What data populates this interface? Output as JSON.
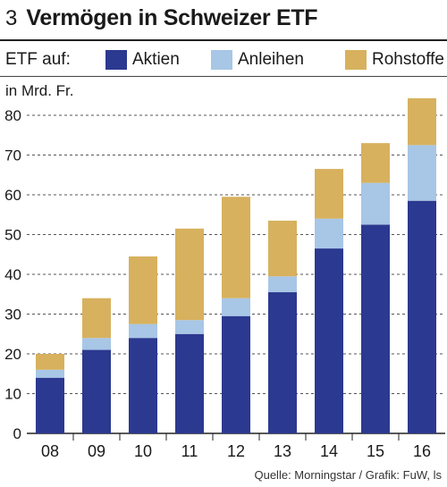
{
  "header": {
    "number": "3",
    "title": "Vermögen in Schweizer ETF"
  },
  "legend": {
    "label": "ETF auf:",
    "items": [
      {
        "name": "Aktien",
        "color": "#2b3990"
      },
      {
        "name": "Anleihen",
        "color": "#a8c6e6"
      },
      {
        "name": "Rohstoffe",
        "color": "#d7b15e"
      }
    ]
  },
  "unit": "in Mrd. Fr.",
  "source": "Quelle: Morningstar / Grafik: FuW, ls",
  "chart_data": {
    "type": "bar",
    "stacked": true,
    "categories": [
      "08",
      "09",
      "10",
      "11",
      "12",
      "13",
      "14",
      "15",
      "16"
    ],
    "series": [
      {
        "name": "Aktien",
        "color": "#2b3990",
        "values": [
          14,
          21,
          24,
          25,
          29.5,
          35.5,
          46.5,
          52.5,
          58.5
        ]
      },
      {
        "name": "Anleihen",
        "color": "#a8c6e6",
        "values": [
          2,
          3,
          3.5,
          3.5,
          4.5,
          4,
          7.5,
          10.5,
          14
        ]
      },
      {
        "name": "Rohstoffe",
        "color": "#d7b15e",
        "values": [
          4,
          10,
          17,
          23,
          25.5,
          14,
          12.5,
          10,
          12.5
        ]
      }
    ],
    "ylim": [
      0,
      85
    ],
    "yticks": [
      0,
      10,
      20,
      30,
      40,
      50,
      60,
      70,
      80
    ],
    "grid": "horizontal-dashed",
    "legend_position": "top"
  }
}
